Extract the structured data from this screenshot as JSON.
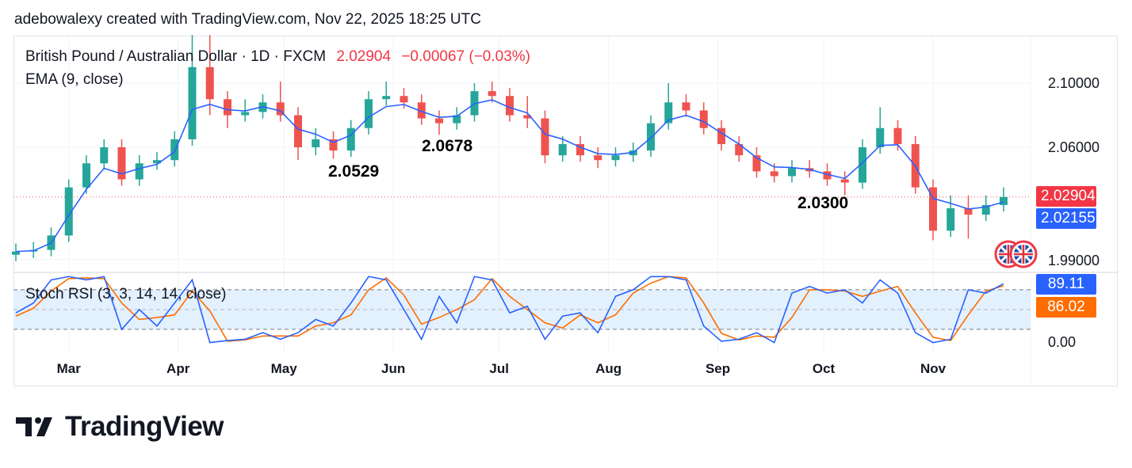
{
  "credit": "adebowalexy created with TradingView.com, Nov 22, 2025 18:25 UTC",
  "legend": {
    "symbol": "British Pound / Australian Dollar · 1D · FXCM",
    "price": "2.02904",
    "change": "−0.00067 (−0.03%)",
    "ema": "EMA (9, close)",
    "stoch": "Stoch RSI (3, 3, 14, 14, close)"
  },
  "badges": {
    "last_price": "2.02904",
    "ema_value": "2.02155",
    "k_value": "89.11",
    "d_value": "86.02"
  },
  "colors": {
    "up": "#26a69a",
    "down": "#ef5350",
    "ema": "#2962ff",
    "k": "#2962ff",
    "d": "#ff6d00",
    "band": "#e3f0fd"
  },
  "flag_icons": [
    "uk-flag-icon",
    "uk-flag-icon"
  ],
  "logo": "TradingView",
  "chart_data": {
    "type": "candlestick",
    "price_axis": {
      "ticks": [
        "2.10000",
        "2.06000",
        "1.99000"
      ],
      "tick_values": [
        2.1,
        2.06,
        1.99
      ]
    },
    "time_axis": {
      "ticks": [
        "Mar",
        "Apr",
        "May",
        "Jun",
        "Jul",
        "Aug",
        "Sep",
        "Oct",
        "Nov"
      ],
      "tick_dates": [
        "2025-03-01",
        "2025-04-01",
        "2025-05-01",
        "2025-06-01",
        "2025-07-01",
        "2025-08-01",
        "2025-09-01",
        "2025-10-01",
        "2025-11-01"
      ]
    },
    "annotations": [
      {
        "text": "2.0529",
        "date": "2025-05-15",
        "price": 2.0529
      },
      {
        "text": "2.0678",
        "date": "2025-06-14",
        "price": 2.0678
      },
      {
        "text": "2.0300",
        "date": "2025-10-07",
        "price": 2.03
      }
    ],
    "candles": [
      [
        "2025-02-14",
        1.993,
        2.0,
        1.989,
        1.995
      ],
      [
        "2025-02-19",
        1.995,
        2.001,
        1.991,
        1.996
      ],
      [
        "2025-02-24",
        1.996,
        2.01,
        1.992,
        2.005
      ],
      [
        "2025-03-01",
        2.005,
        2.04,
        2.001,
        2.035
      ],
      [
        "2025-03-06",
        2.035,
        2.055,
        2.031,
        2.05
      ],
      [
        "2025-03-11",
        2.05,
        2.065,
        2.046,
        2.06
      ],
      [
        "2025-03-16",
        2.06,
        2.065,
        2.036,
        2.04
      ],
      [
        "2025-03-21",
        2.04,
        2.055,
        2.036,
        2.05
      ],
      [
        "2025-03-26",
        2.05,
        2.057,
        2.046,
        2.052
      ],
      [
        "2025-03-31",
        2.052,
        2.07,
        2.048,
        2.065
      ],
      [
        "2025-04-05",
        2.065,
        2.13,
        2.061,
        2.11
      ],
      [
        "2025-04-10",
        2.11,
        2.13,
        2.08,
        2.09
      ],
      [
        "2025-04-15",
        2.09,
        2.095,
        2.072,
        2.08
      ],
      [
        "2025-04-20",
        2.08,
        2.09,
        2.076,
        2.082
      ],
      [
        "2025-04-25",
        2.082,
        2.093,
        2.078,
        2.088
      ],
      [
        "2025-04-30",
        2.088,
        2.101,
        2.076,
        2.08
      ],
      [
        "2025-05-05",
        2.08,
        2.085,
        2.052,
        2.06
      ],
      [
        "2025-05-10",
        2.06,
        2.072,
        2.055,
        2.065
      ],
      [
        "2025-05-15",
        2.065,
        2.07,
        2.0529,
        2.058
      ],
      [
        "2025-05-20",
        2.058,
        2.077,
        2.054,
        2.072
      ],
      [
        "2025-05-25",
        2.072,
        2.095,
        2.068,
        2.09
      ],
      [
        "2025-05-30",
        2.09,
        2.101,
        2.086,
        2.092
      ],
      [
        "2025-06-04",
        2.092,
        2.097,
        2.084,
        2.088
      ],
      [
        "2025-06-09",
        2.088,
        2.093,
        2.074,
        2.078
      ],
      [
        "2025-06-14",
        2.078,
        2.083,
        2.0678,
        2.075
      ],
      [
        "2025-06-19",
        2.075,
        2.085,
        2.071,
        2.08
      ],
      [
        "2025-06-24",
        2.08,
        2.1,
        2.076,
        2.095
      ],
      [
        "2025-06-29",
        2.095,
        2.101,
        2.088,
        2.092
      ],
      [
        "2025-07-04",
        2.092,
        2.097,
        2.076,
        2.08
      ],
      [
        "2025-07-09",
        2.08,
        2.092,
        2.072,
        2.078
      ],
      [
        "2025-07-14",
        2.078,
        2.083,
        2.05,
        2.055
      ],
      [
        "2025-07-19",
        2.055,
        2.067,
        2.051,
        2.062
      ],
      [
        "2025-07-24",
        2.062,
        2.067,
        2.051,
        2.055
      ],
      [
        "2025-07-29",
        2.055,
        2.06,
        2.047,
        2.052
      ],
      [
        "2025-08-03",
        2.052,
        2.06,
        2.048,
        2.055
      ],
      [
        "2025-08-08",
        2.055,
        2.063,
        2.051,
        2.058
      ],
      [
        "2025-08-13",
        2.058,
        2.08,
        2.054,
        2.075
      ],
      [
        "2025-08-18",
        2.075,
        2.1,
        2.071,
        2.088
      ],
      [
        "2025-08-23",
        2.088,
        2.093,
        2.079,
        2.083
      ],
      [
        "2025-08-28",
        2.083,
        2.088,
        2.068,
        2.072
      ],
      [
        "2025-09-02",
        2.072,
        2.077,
        2.058,
        2.062
      ],
      [
        "2025-09-07",
        2.062,
        2.067,
        2.051,
        2.055
      ],
      [
        "2025-09-12",
        2.055,
        2.06,
        2.041,
        2.045
      ],
      [
        "2025-09-17",
        2.045,
        2.05,
        2.038,
        2.042
      ],
      [
        "2025-09-22",
        2.042,
        2.052,
        2.038,
        2.047
      ],
      [
        "2025-09-27",
        2.047,
        2.052,
        2.041,
        2.045
      ],
      [
        "2025-10-02",
        2.045,
        2.05,
        2.036,
        2.04
      ],
      [
        "2025-10-07",
        2.04,
        2.045,
        2.03,
        2.038
      ],
      [
        "2025-10-12",
        2.038,
        2.065,
        2.034,
        2.06
      ],
      [
        "2025-10-17",
        2.06,
        2.085,
        2.056,
        2.072
      ],
      [
        "2025-10-22",
        2.072,
        2.077,
        2.058,
        2.062
      ],
      [
        "2025-10-27",
        2.062,
        2.067,
        2.031,
        2.035
      ],
      [
        "2025-11-01",
        2.035,
        2.04,
        2.002,
        2.008
      ],
      [
        "2025-11-06",
        2.008,
        2.03,
        2.004,
        2.022
      ],
      [
        "2025-11-11",
        2.022,
        2.03,
        2.003,
        2.018
      ],
      [
        "2025-11-16",
        2.018,
        2.03,
        2.014,
        2.024
      ],
      [
        "2025-11-21",
        2.024,
        2.035,
        2.02,
        2.029
      ]
    ],
    "stoch_rsi": {
      "axis_ticks": [
        "0.00"
      ],
      "band_upper": 80,
      "band_mid": 50,
      "band_lower": 20,
      "range": [
        0,
        100
      ],
      "k": [
        45,
        60,
        95,
        100,
        95,
        100,
        20,
        50,
        25,
        60,
        95,
        0,
        3,
        5,
        15,
        5,
        15,
        35,
        25,
        60,
        100,
        95,
        50,
        5,
        70,
        30,
        100,
        95,
        45,
        55,
        5,
        40,
        45,
        15,
        70,
        80,
        100,
        100,
        95,
        25,
        2,
        5,
        15,
        0,
        75,
        85,
        75,
        80,
        60,
        95,
        75,
        15,
        0,
        5,
        80,
        75,
        89.11
      ],
      "d": [
        40,
        52,
        78,
        97,
        98,
        97,
        60,
        35,
        38,
        42,
        78,
        48,
        2,
        4,
        10,
        10,
        10,
        25,
        30,
        42,
        80,
        98,
        72,
        28,
        38,
        50,
        65,
        97,
        70,
        50,
        30,
        22,
        42,
        30,
        42,
        75,
        90,
        100,
        98,
        60,
        14,
        4,
        10,
        8,
        38,
        80,
        80,
        78,
        70,
        78,
        85,
        45,
        8,
        3,
        42,
        78,
        86.02
      ]
    }
  }
}
